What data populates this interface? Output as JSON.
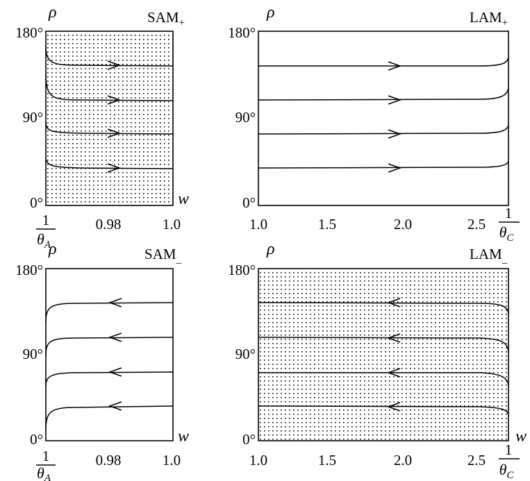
{
  "figure": {
    "panels": [
      {
        "id": "sam-plus",
        "title_main": "SAM",
        "title_sub": "+",
        "y_symbol": "ρ",
        "x_symbol": "w",
        "y_ticks": [
          "180°",
          "90°",
          "0°"
        ],
        "x_tick_frac": {
          "num": "1",
          "den_sym": "θ",
          "den_sub": "A"
        },
        "x_ticks": [
          "0.98",
          "1.0"
        ],
        "shaded": true,
        "arrow_direction": "right"
      },
      {
        "id": "lam-plus",
        "title_main": "LAM",
        "title_sub": "+",
        "y_symbol": "ρ",
        "x_symbol": "",
        "y_ticks": [
          "180°",
          "90°",
          "0°"
        ],
        "x_ticks": [
          "1.0",
          "1.5",
          "2.0",
          "2.5"
        ],
        "x_tick_frac": {
          "num": "1",
          "den_sym": "θ",
          "den_sub": "C"
        },
        "shaded": false,
        "arrow_direction": "right"
      },
      {
        "id": "sam-minus",
        "title_main": "SAM",
        "title_sub": "_",
        "y_symbol": "ρ",
        "x_symbol": "w",
        "y_ticks": [
          "180°",
          "90°",
          "0°"
        ],
        "x_tick_frac": {
          "num": "1",
          "den_sym": "θ",
          "den_sub": "A"
        },
        "x_ticks": [
          "0.98",
          "1.0"
        ],
        "shaded": false,
        "arrow_direction": "left"
      },
      {
        "id": "lam-minus",
        "title_main": "LAM",
        "title_sub": "_",
        "y_symbol": "ρ",
        "x_symbol": "w",
        "y_ticks": [
          "180°",
          "90°",
          "0°"
        ],
        "x_ticks": [
          "1.0",
          "1.5",
          "2.0",
          "2.5"
        ],
        "x_tick_frac": {
          "num": "1",
          "den_sym": "θ",
          "den_sub": "C"
        },
        "shaded": true,
        "arrow_direction": "left"
      }
    ]
  }
}
